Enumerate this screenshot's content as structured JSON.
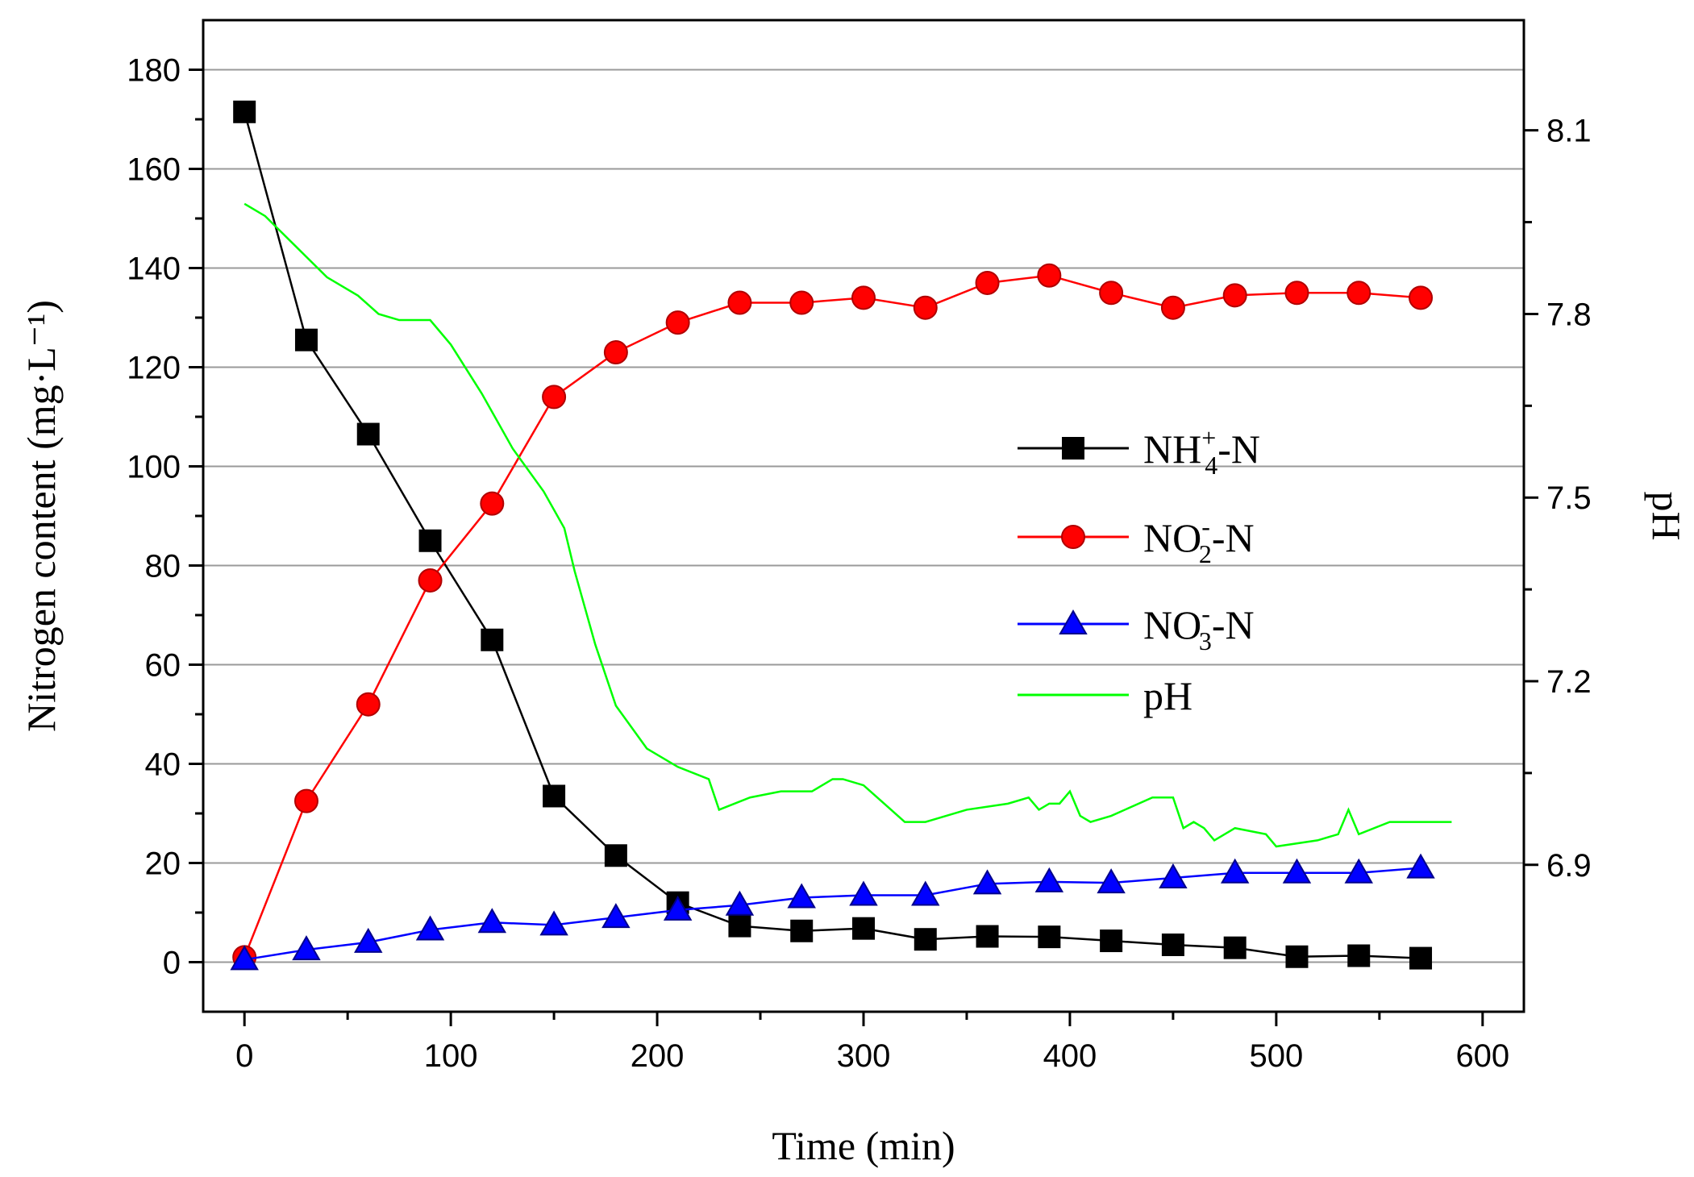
{
  "chart_data": {
    "type": "line",
    "x_axis": {
      "label": "Time (min)",
      "range": [
        -20,
        620
      ],
      "ticks": [
        0,
        100,
        200,
        300,
        400,
        500,
        600
      ],
      "tick_labels": [
        "0",
        "100",
        "200",
        "300",
        "400",
        "500",
        "600"
      ]
    },
    "y_axis_left": {
      "label": "Nitrogen content (mg·L⁻¹)",
      "range": [
        -10,
        190
      ],
      "ticks": [
        0,
        20,
        40,
        60,
        80,
        100,
        120,
        140,
        160,
        180
      ],
      "tick_labels": [
        "0",
        "20",
        "40",
        "60",
        "80",
        "100",
        "120",
        "140",
        "160",
        "180"
      ]
    },
    "y_axis_right": {
      "label": "pH",
      "range": [
        6.66,
        8.28
      ],
      "ticks": [
        6.9,
        7.2,
        7.5,
        7.8,
        8.1
      ],
      "tick_labels": [
        "6.9",
        "7.2",
        "7.5",
        "7.8",
        "8.1"
      ]
    },
    "grid": true,
    "x": [
      0,
      30,
      60,
      90,
      120,
      150,
      180,
      210,
      240,
      270,
      300,
      330,
      360,
      390,
      420,
      450,
      480,
      510,
      540,
      570
    ],
    "series": [
      {
        "name": "NH4+-N",
        "legend_main": "NH",
        "legend_sub": "4",
        "legend_sup": "+",
        "legend_tail": "-N",
        "axis": "left",
        "color": "#000000",
        "marker": "square",
        "values": [
          171.5,
          125.5,
          106.5,
          85,
          65,
          33.5,
          21.5,
          12,
          7.3,
          6.3,
          6.8,
          4.6,
          5.2,
          5.1,
          4.3,
          3.5,
          2.9,
          1.1,
          1.3,
          0.8
        ]
      },
      {
        "name": "NO2--N",
        "legend_main": "NO",
        "legend_sub": "2",
        "legend_sup": "-",
        "legend_tail": "-N",
        "axis": "left",
        "color": "#ff0000",
        "marker": "circle",
        "values": [
          1,
          32.5,
          52,
          77,
          92.5,
          114,
          123,
          129,
          133,
          133,
          134,
          132,
          137,
          138.5,
          135,
          132,
          134.5,
          135,
          135,
          134
        ]
      },
      {
        "name": "NO3--N",
        "legend_main": "NO",
        "legend_sub": "3",
        "legend_sup": "-",
        "legend_tail": "-N",
        "axis": "left",
        "color": "#0000ff",
        "marker": "triangle",
        "values": [
          0.5,
          2.5,
          4,
          6.5,
          8,
          7.5,
          9,
          10.5,
          11.5,
          13,
          13.5,
          13.5,
          15.8,
          16.2,
          16,
          17,
          18,
          18,
          18,
          19
        ]
      },
      {
        "name": "pH",
        "legend_main": "pH",
        "axis": "right",
        "color": "#00ff00",
        "marker": "none",
        "x": [
          0,
          10,
          25,
          40,
          55,
          65,
          75,
          90,
          100,
          115,
          130,
          145,
          155,
          160,
          170,
          180,
          195,
          210,
          225,
          230,
          245,
          260,
          275,
          285,
          290,
          300,
          310,
          320,
          330,
          350,
          370,
          380,
          385,
          390,
          395,
          400,
          405,
          410,
          420,
          440,
          450,
          455,
          460,
          465,
          470,
          480,
          495,
          500,
          520,
          530,
          535,
          540,
          555,
          570,
          580,
          585
        ],
        "values": [
          7.98,
          7.96,
          7.91,
          7.86,
          7.83,
          7.8,
          7.79,
          7.79,
          7.75,
          7.67,
          7.58,
          7.51,
          7.45,
          7.38,
          7.26,
          7.16,
          7.09,
          7.06,
          7.04,
          6.99,
          7.01,
          7.02,
          7.02,
          7.04,
          7.04,
          7.03,
          7.0,
          6.97,
          6.97,
          6.99,
          7.0,
          7.01,
          6.99,
          7.0,
          7.0,
          7.02,
          6.98,
          6.97,
          6.98,
          7.01,
          7.01,
          6.96,
          6.97,
          6.96,
          6.94,
          6.96,
          6.95,
          6.93,
          6.94,
          6.95,
          6.99,
          6.95,
          6.97,
          6.97,
          6.97,
          6.97
        ]
      }
    ]
  }
}
